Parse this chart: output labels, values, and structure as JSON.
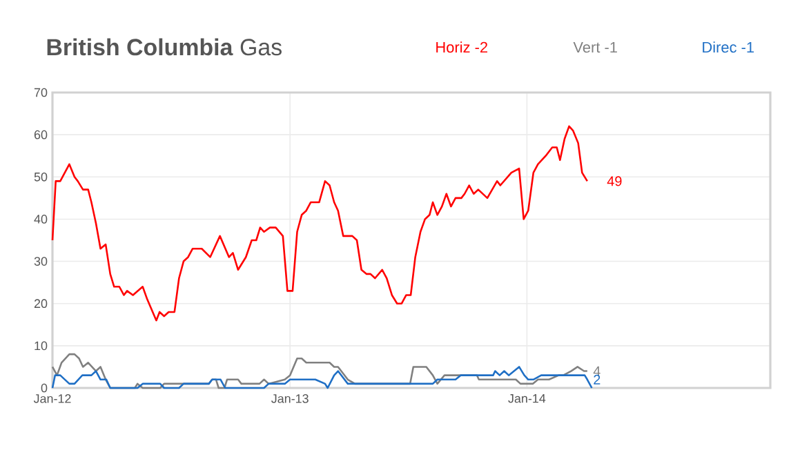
{
  "chart_data": {
    "type": "line",
    "title": "**British Columbia** Gas",
    "xlim": [
      "2012-01-01",
      "2015-01-11"
    ],
    "ylim": [
      0,
      70
    ],
    "xticks": [
      {
        "value": "2012-01-01",
        "label": "Jan-12"
      },
      {
        "value": "2013-01-01",
        "label": "Jan-13"
      },
      {
        "value": "2014-01-01",
        "label": "Jan-14"
      }
    ],
    "yticks": [
      0,
      10,
      20,
      30,
      40,
      50,
      60,
      70
    ],
    "grid": true,
    "legend": "top",
    "marker": "none",
    "line_style": "solid",
    "series": [
      {
        "name": "Horiz -2",
        "color": "#ff0000",
        "x": [
          "2012-01-01",
          "2012-01-06",
          "2012-01-13",
          "2012-01-27",
          "2012-02-04",
          "2012-02-09",
          "2012-02-17",
          "2012-02-25",
          "2012-03-01",
          "2012-03-08",
          "2012-03-15",
          "2012-03-23",
          "2012-03-30",
          "2012-04-05",
          "2012-04-13",
          "2012-04-20",
          "2012-04-25",
          "2012-05-04",
          "2012-05-19",
          "2012-05-26",
          "2012-06-09",
          "2012-06-14",
          "2012-06-21",
          "2012-06-28",
          "2012-07-07",
          "2012-07-14",
          "2012-07-21",
          "2012-07-28",
          "2012-08-04",
          "2012-08-18",
          "2012-08-31",
          "2012-09-15",
          "2012-09-29",
          "2012-10-05",
          "2012-10-13",
          "2012-10-25",
          "2012-11-03",
          "2012-11-10",
          "2012-11-16",
          "2012-11-22",
          "2012-12-01",
          "2012-12-10",
          "2012-12-21",
          "2012-12-28",
          "2013-01-05",
          "2013-01-12",
          "2013-01-19",
          "2013-01-26",
          "2013-02-02",
          "2013-02-15",
          "2013-02-24",
          "2013-03-03",
          "2013-03-10",
          "2013-03-16",
          "2013-03-24",
          "2013-04-07",
          "2013-04-14",
          "2013-04-21",
          "2013-04-29",
          "2013-05-05",
          "2013-05-12",
          "2013-05-23",
          "2013-05-30",
          "2013-06-07",
          "2013-06-15",
          "2013-06-22",
          "2013-06-29",
          "2013-07-06",
          "2013-07-13",
          "2013-07-21",
          "2013-07-28",
          "2013-08-04",
          "2013-08-09",
          "2013-08-16",
          "2013-08-23",
          "2013-08-30",
          "2013-09-06",
          "2013-09-13",
          "2013-09-22",
          "2013-09-27",
          "2013-10-04",
          "2013-10-11",
          "2013-10-18",
          "2013-11-01",
          "2013-11-16",
          "2013-11-21",
          "2013-12-08",
          "2013-12-20",
          "2013-12-27",
          "2014-01-03",
          "2014-01-11",
          "2014-01-18",
          "2014-01-30",
          "2014-02-09",
          "2014-02-16",
          "2014-02-21",
          "2014-02-28",
          "2014-03-07",
          "2014-03-13",
          "2014-03-21",
          "2014-03-27",
          "2014-04-04"
        ],
        "values": [
          35,
          49,
          49,
          53,
          50,
          49,
          47,
          47,
          44,
          39,
          33,
          34,
          27,
          24,
          24,
          22,
          23,
          22,
          24,
          21,
          16,
          18,
          17,
          18,
          18,
          26,
          30,
          31,
          33,
          33,
          31,
          36,
          31,
          32,
          28,
          31,
          35,
          35,
          38,
          37,
          38,
          38,
          36,
          23,
          23,
          37,
          41,
          42,
          44,
          44,
          49,
          48,
          44,
          42,
          36,
          36,
          35,
          28,
          27,
          27,
          26,
          28,
          26,
          22,
          20,
          20,
          22,
          22,
          31,
          37,
          40,
          41,
          44,
          41,
          43,
          46,
          43,
          45,
          45,
          46,
          48,
          46,
          47,
          45,
          49,
          48,
          51,
          52,
          40,
          42,
          51,
          53,
          55,
          57,
          57,
          54,
          59,
          62,
          61,
          58,
          51,
          49
        ]
      },
      {
        "name": "Vert -1",
        "color": "#808080",
        "x": [
          "2012-01-01",
          "2012-01-08",
          "2012-01-15",
          "2012-01-27",
          "2012-02-04",
          "2012-02-11",
          "2012-02-17",
          "2012-02-25",
          "2012-03-08",
          "2012-03-15",
          "2012-03-23",
          "2012-03-30",
          "2012-05-07",
          "2012-05-11",
          "2012-05-19",
          "2012-06-15",
          "2012-06-21",
          "2012-08-29",
          "2012-09-03",
          "2012-09-09",
          "2012-09-13",
          "2012-09-22",
          "2012-09-26",
          "2012-10-13",
          "2012-10-18",
          "2012-11-15",
          "2012-11-22",
          "2012-11-29",
          "2012-12-24",
          "2013-01-01",
          "2013-01-12",
          "2013-01-19",
          "2013-01-26",
          "2013-03-03",
          "2013-03-10",
          "2013-03-16",
          "2013-03-31",
          "2013-04-11",
          "2013-07-05",
          "2013-07-10",
          "2013-07-30",
          "2013-08-09",
          "2013-08-16",
          "2013-08-27",
          "2013-10-16",
          "2013-10-19",
          "2013-12-15",
          "2013-12-22",
          "2014-01-10",
          "2014-01-18",
          "2014-02-04",
          "2014-02-19",
          "2014-02-26",
          "2014-03-10",
          "2014-03-20",
          "2014-03-30",
          "2014-04-04"
        ],
        "values": [
          5,
          3,
          6,
          8,
          8,
          7,
          5,
          6,
          4,
          5,
          2,
          0,
          0,
          1,
          0,
          0,
          1,
          1,
          2,
          2,
          0,
          0,
          2,
          2,
          1,
          1,
          2,
          1,
          2,
          3,
          7,
          7,
          6,
          6,
          5,
          5,
          2,
          1,
          1,
          5,
          5,
          3,
          1,
          3,
          3,
          2,
          2,
          1,
          1,
          2,
          2,
          3,
          3,
          4,
          5,
          4,
          4
        ]
      },
      {
        "name": "Direc -1",
        "color": "#1f6fc5",
        "x": [
          "2012-01-01",
          "2012-01-05",
          "2012-01-13",
          "2012-01-27",
          "2012-02-04",
          "2012-02-16",
          "2012-03-01",
          "2012-03-08",
          "2012-03-15",
          "2012-03-24",
          "2012-03-30",
          "2012-05-11",
          "2012-05-19",
          "2012-06-15",
          "2012-06-21",
          "2012-07-14",
          "2012-07-21",
          "2012-08-29",
          "2012-09-03",
          "2012-09-16",
          "2012-09-23",
          "2012-11-22",
          "2012-11-29",
          "2012-12-24",
          "2013-01-01",
          "2013-02-09",
          "2013-02-24",
          "2013-02-28",
          "2013-03-10",
          "2013-03-16",
          "2013-03-31",
          "2013-08-09",
          "2013-08-16",
          "2013-09-13",
          "2013-09-21",
          "2013-11-10",
          "2013-11-13",
          "2013-11-20",
          "2013-11-27",
          "2013-12-04",
          "2013-12-20",
          "2013-12-28",
          "2014-01-03",
          "2014-01-11",
          "2014-01-23",
          "2014-03-31",
          "2014-04-04",
          "2014-04-11"
        ],
        "values": [
          0,
          3,
          3,
          1,
          1,
          3,
          3,
          4,
          2,
          2,
          0,
          0,
          1,
          1,
          0,
          0,
          1,
          1,
          2,
          2,
          0,
          0,
          1,
          1,
          2,
          2,
          1,
          0,
          3,
          4,
          1,
          1,
          2,
          2,
          3,
          3,
          4,
          3,
          4,
          3,
          5,
          3,
          2,
          2,
          3,
          3,
          2,
          0
        ]
      }
    ],
    "annotations": [
      {
        "text": "49",
        "x": "2014-04-04",
        "y": 49
      },
      {
        "text": "4",
        "x": "2014-04-04",
        "y": 4
      },
      {
        "text": "2",
        "x": "2014-04-04",
        "y": 2
      }
    ]
  }
}
